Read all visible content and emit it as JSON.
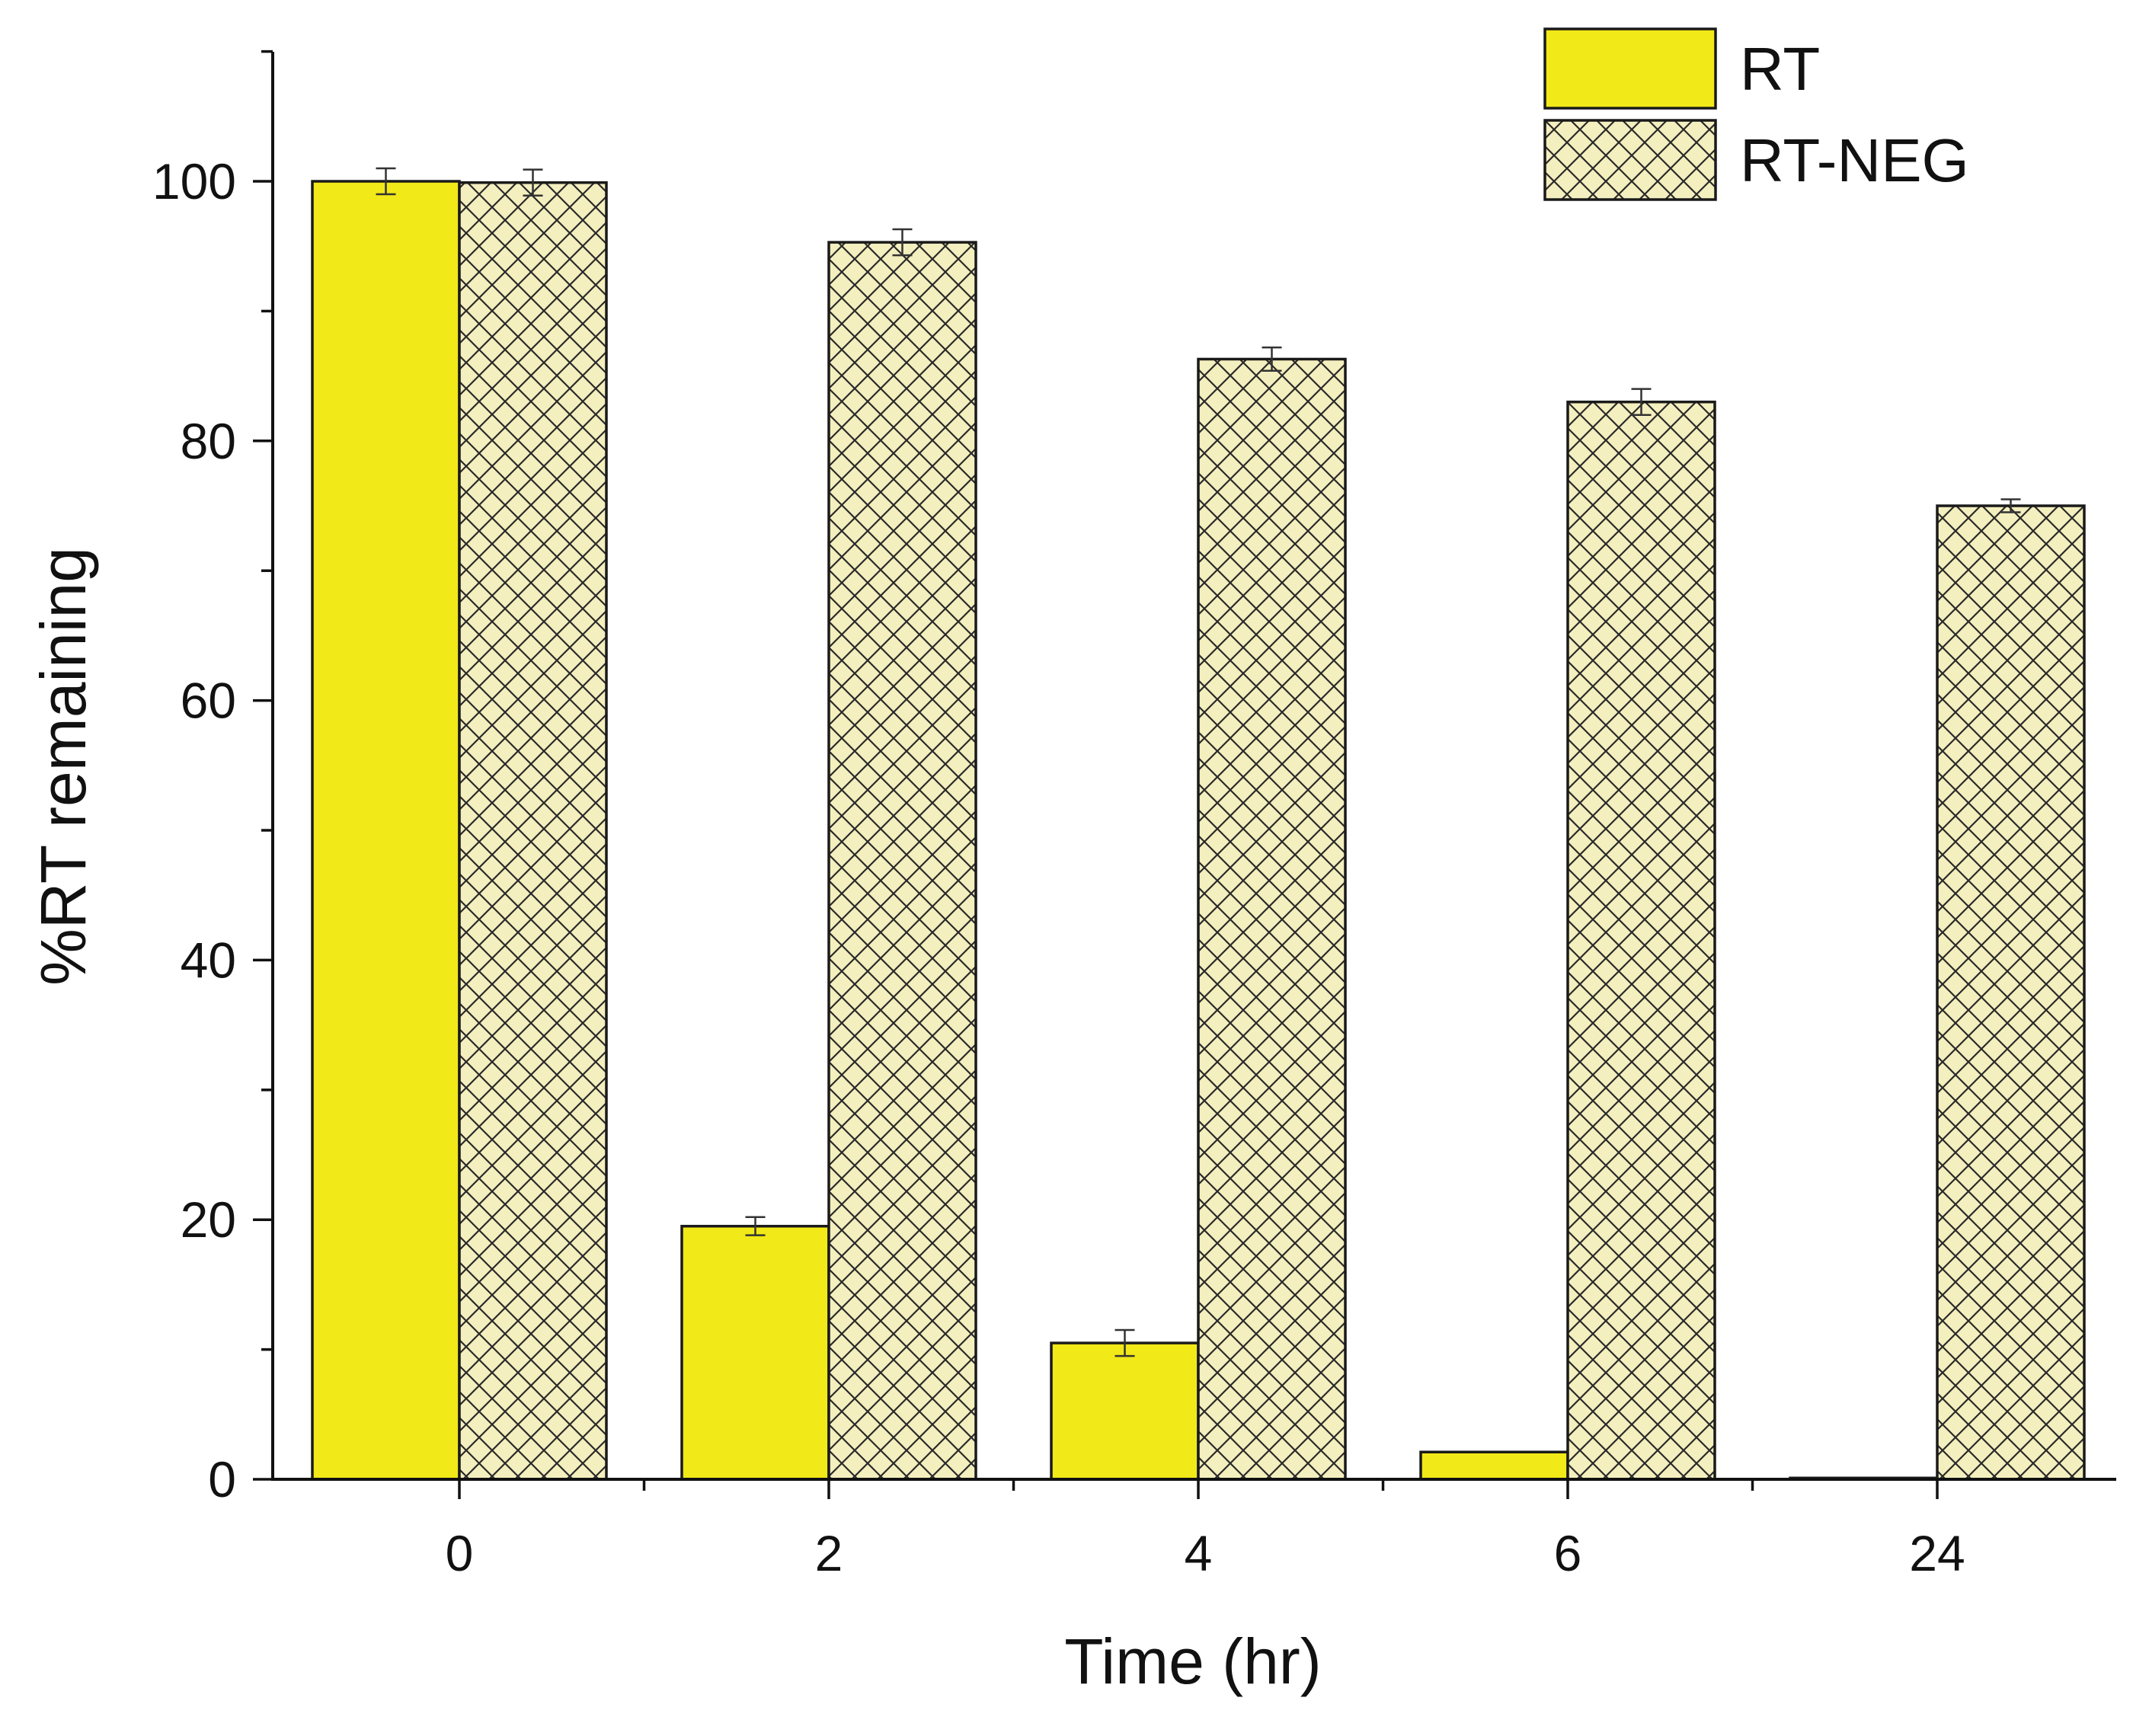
{
  "chart_data": {
    "type": "bar",
    "title": "",
    "xlabel": "Time (hr)",
    "ylabel": "%RT remaining",
    "categories": [
      "0",
      "2",
      "4",
      "6",
      "24"
    ],
    "ylim": [
      0,
      110
    ],
    "yticks": [
      0,
      20,
      40,
      60,
      80,
      100
    ],
    "y_minor_step": 10,
    "grid": false,
    "legend_position": "top-right",
    "series": [
      {
        "name": "RT",
        "fill": "solid",
        "color": "#f2e918",
        "values": [
          100,
          19.5,
          10.5,
          2.1,
          0.1
        ],
        "errors": [
          1.0,
          0.7,
          1.0,
          0,
          0
        ]
      },
      {
        "name": "RT-NEG",
        "fill": "crosshatch",
        "color": "#f4efbe",
        "values": [
          99.9,
          95.3,
          86.3,
          83.0,
          75.0
        ],
        "errors": [
          1.0,
          1.0,
          0.9,
          1.0,
          0.5
        ]
      }
    ]
  }
}
